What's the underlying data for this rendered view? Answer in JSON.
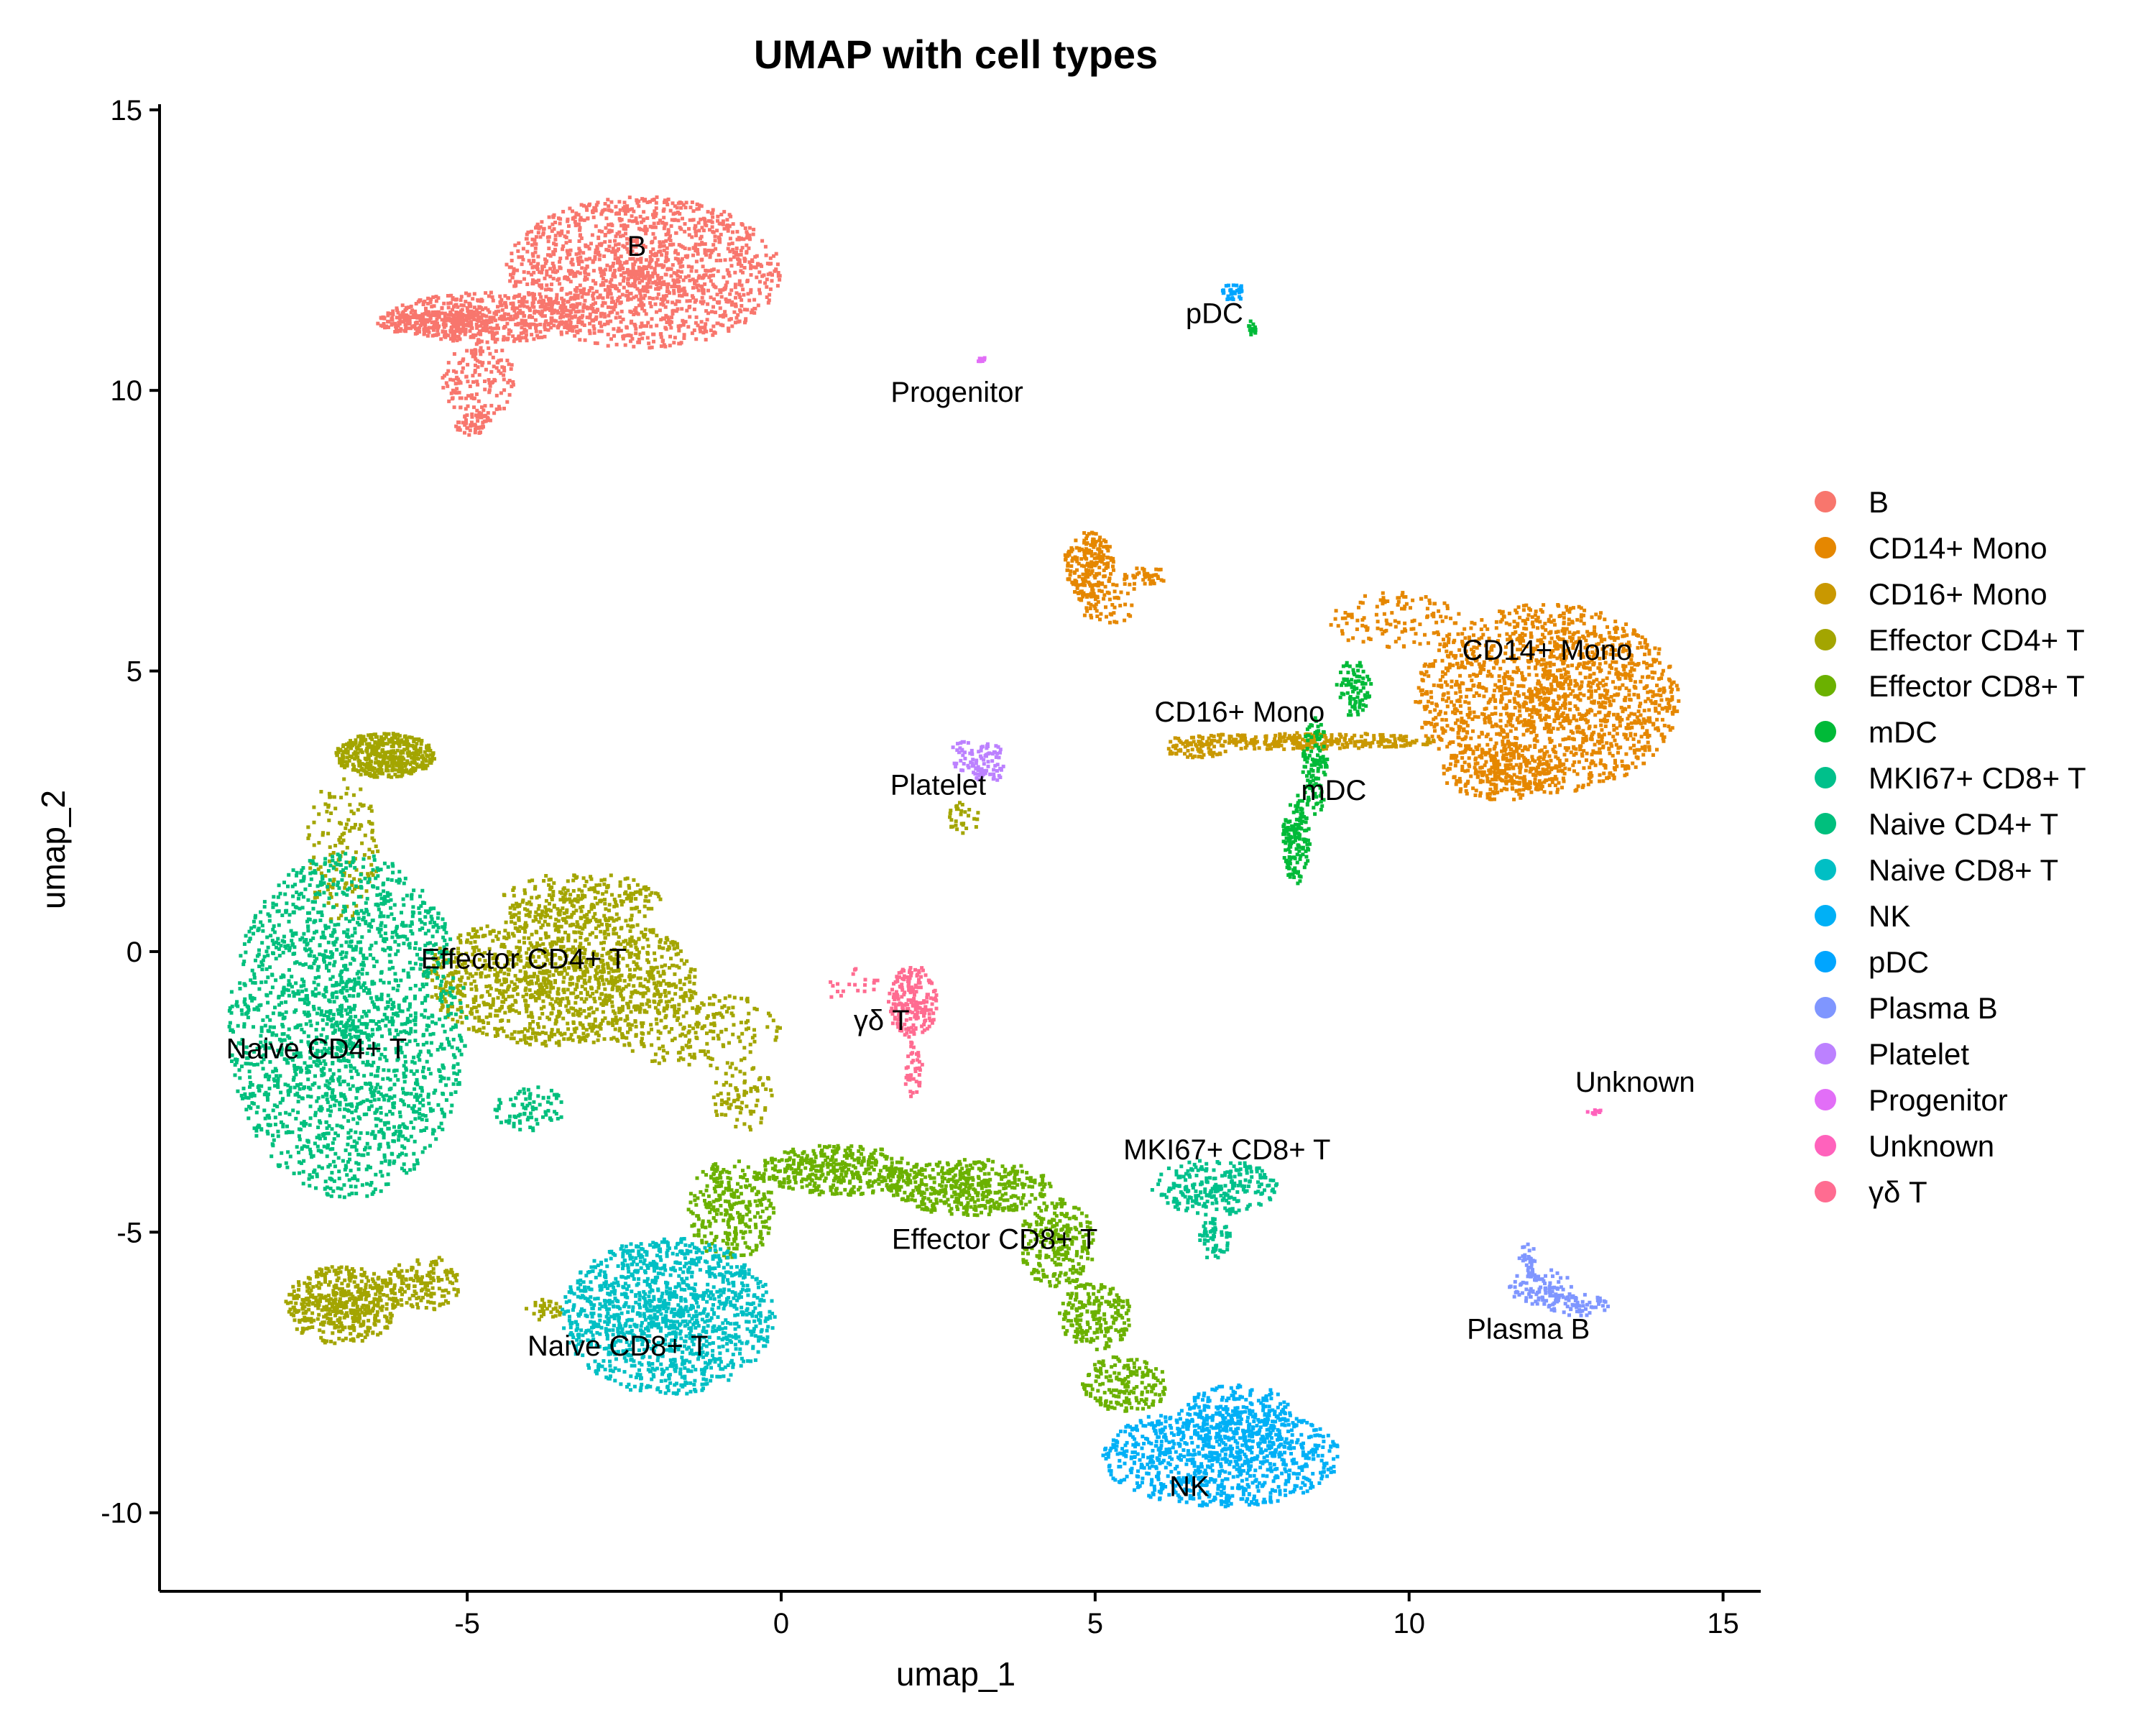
{
  "chart_data": {
    "type": "scatter",
    "title": "UMAP with cell types",
    "xlabel": "umap_1",
    "ylabel": "umap_2",
    "xlim": [
      -9.9,
      15.6
    ],
    "ylim": [
      -11.4,
      15.1
    ],
    "xticks": [
      -5,
      0,
      5,
      10,
      15
    ],
    "yticks": [
      -10,
      -5,
      0,
      5,
      10,
      15
    ],
    "grid": false,
    "legend_position": "right",
    "series": [
      {
        "name": "B",
        "color": "#F8766D",
        "label_at": [
          -2.3,
          12.4
        ],
        "regions": [
          {
            "x": -2.2,
            "y": 12.1,
            "rx": 2.2,
            "ry": 1.35,
            "n": 1500
          },
          {
            "x": -4.6,
            "y": 11.3,
            "rx": 1.7,
            "ry": 0.45,
            "n": 500
          },
          {
            "x": -5.5,
            "y": 11.2,
            "rx": 1.0,
            "ry": 0.22,
            "n": 200
          },
          {
            "x": -4.8,
            "y": 10.2,
            "rx": 0.6,
            "ry": 0.7,
            "n": 150
          },
          {
            "x": -4.9,
            "y": 9.4,
            "rx": 0.3,
            "ry": 0.2,
            "n": 60
          }
        ]
      },
      {
        "name": "CD14+ Mono",
        "color": "#E58700",
        "label_at": [
          12.2,
          5.2
        ],
        "regions": [
          {
            "x": 12.2,
            "y": 4.5,
            "rx": 2.1,
            "ry": 1.7,
            "n": 1700
          },
          {
            "x": 11.5,
            "y": 3.2,
            "rx": 1.0,
            "ry": 0.5,
            "n": 200
          },
          {
            "x": 9.8,
            "y": 5.9,
            "rx": 1.1,
            "ry": 0.5,
            "n": 120
          },
          {
            "x": 4.9,
            "y": 6.9,
            "rx": 0.4,
            "ry": 0.6,
            "n": 200
          },
          {
            "x": 5.2,
            "y": 6.3,
            "rx": 0.5,
            "ry": 0.5,
            "n": 70
          },
          {
            "x": 5.8,
            "y": 6.7,
            "rx": 0.4,
            "ry": 0.15,
            "n": 40
          }
        ]
      },
      {
        "name": "CD16+ Mono",
        "color": "#C99800",
        "label_at": [
          7.3,
          4.1
        ],
        "regions": [
          {
            "x": 8.3,
            "y": 3.75,
            "rx": 2.2,
            "ry": 0.15,
            "n": 300
          },
          {
            "x": 6.6,
            "y": 3.6,
            "rx": 0.5,
            "ry": 0.15,
            "n": 60
          }
        ]
      },
      {
        "name": "Effector CD4+ T",
        "color": "#A3A500",
        "label_at": [
          -4.1,
          -0.3
        ],
        "regions": [
          {
            "x": -3.5,
            "y": -0.5,
            "rx": 2.2,
            "ry": 1.2,
            "n": 1300
          },
          {
            "x": -3.2,
            "y": 0.9,
            "rx": 1.3,
            "ry": 0.5,
            "n": 250
          },
          {
            "x": -6.3,
            "y": 3.5,
            "rx": 0.8,
            "ry": 0.4,
            "n": 450
          },
          {
            "x": -7.0,
            "y": 1.8,
            "rx": 0.6,
            "ry": 1.3,
            "n": 150
          },
          {
            "x": -1.3,
            "y": -1.4,
            "rx": 1.3,
            "ry": 0.7,
            "n": 200
          },
          {
            "x": -0.6,
            "y": -2.6,
            "rx": 0.5,
            "ry": 0.6,
            "n": 80
          },
          {
            "x": -7.0,
            "y": -6.3,
            "rx": 0.9,
            "ry": 0.7,
            "n": 500
          },
          {
            "x": -5.7,
            "y": -5.9,
            "rx": 0.6,
            "ry": 0.5,
            "n": 150
          },
          {
            "x": -3.8,
            "y": -6.4,
            "rx": 0.3,
            "ry": 0.2,
            "n": 30
          },
          {
            "x": 2.9,
            "y": 2.4,
            "rx": 0.3,
            "ry": 0.3,
            "n": 30
          }
        ]
      },
      {
        "name": "Effector CD8+ T",
        "color": "#6BB100",
        "label_at": [
          3.4,
          -5.3
        ],
        "regions": [
          {
            "x": -0.8,
            "y": -4.6,
            "rx": 0.7,
            "ry": 0.9,
            "n": 300
          },
          {
            "x": 0.9,
            "y": -3.9,
            "rx": 1.3,
            "ry": 0.45,
            "n": 400
          },
          {
            "x": 3.0,
            "y": -4.2,
            "rx": 1.3,
            "ry": 0.5,
            "n": 450
          },
          {
            "x": 4.4,
            "y": -5.2,
            "rx": 0.6,
            "ry": 0.8,
            "n": 250
          },
          {
            "x": 5.0,
            "y": -6.5,
            "rx": 0.6,
            "ry": 0.6,
            "n": 200
          },
          {
            "x": 5.5,
            "y": -7.7,
            "rx": 0.7,
            "ry": 0.5,
            "n": 180
          }
        ]
      },
      {
        "name": "mDC",
        "color": "#00BA38",
        "label_at": [
          8.8,
          2.7
        ],
        "regions": [
          {
            "x": 8.2,
            "y": 2.0,
            "rx": 0.22,
            "ry": 0.8,
            "n": 150
          },
          {
            "x": 8.5,
            "y": 3.3,
            "rx": 0.2,
            "ry": 0.9,
            "n": 120
          },
          {
            "x": 9.1,
            "y": 4.7,
            "rx": 0.3,
            "ry": 0.5,
            "n": 80
          },
          {
            "x": 7.5,
            "y": 11.1,
            "rx": 0.06,
            "ry": 0.15,
            "n": 15
          }
        ]
      },
      {
        "name": "MKI67+ CD8+ T",
        "color": "#00C08B",
        "label_at": [
          7.1,
          -3.7
        ],
        "regions": [
          {
            "x": 6.9,
            "y": -4.2,
            "rx": 1.0,
            "ry": 0.5,
            "n": 250
          },
          {
            "x": 6.9,
            "y": -5.1,
            "rx": 0.25,
            "ry": 0.4,
            "n": 60
          }
        ]
      },
      {
        "name": "Naive CD4+ T",
        "color": "#00BF7D",
        "label_at": [
          -7.4,
          -1.9
        ],
        "regions": [
          {
            "x": -6.9,
            "y": -1.3,
            "rx": 1.9,
            "ry": 3.1,
            "n": 2000
          },
          {
            "x": -4.0,
            "y": -2.8,
            "rx": 0.6,
            "ry": 0.4,
            "n": 80
          }
        ]
      },
      {
        "name": "Naive CD8+ T",
        "color": "#00BFC4",
        "label_at": [
          -2.6,
          -7.2
        ],
        "regions": [
          {
            "x": -1.8,
            "y": -6.5,
            "rx": 1.7,
            "ry": 1.4,
            "n": 1300
          }
        ]
      },
      {
        "name": "NK",
        "color": "#00B0F6",
        "label_at": [
          6.5,
          -9.7
        ],
        "regions": [
          {
            "x": 7.0,
            "y": -9.0,
            "rx": 1.9,
            "ry": 0.9,
            "n": 900
          },
          {
            "x": 7.3,
            "y": -8.3,
            "rx": 0.9,
            "ry": 0.6,
            "n": 250
          }
        ]
      },
      {
        "name": "pDC",
        "color": "#00A5FF",
        "label_at": [
          6.9,
          11.2
        ],
        "regions": [
          {
            "x": 7.2,
            "y": 11.75,
            "rx": 0.22,
            "ry": 0.15,
            "n": 30
          }
        ]
      },
      {
        "name": "Plasma B",
        "color": "#7F96FF",
        "label_at": [
          11.9,
          -6.9
        ],
        "regions": [
          {
            "x": 12.1,
            "y": -6.0,
            "rx": 0.5,
            "ry": 0.35,
            "n": 100
          },
          {
            "x": 12.7,
            "y": -6.3,
            "rx": 0.5,
            "ry": 0.2,
            "n": 60
          },
          {
            "x": 11.9,
            "y": -5.5,
            "rx": 0.15,
            "ry": 0.3,
            "n": 30
          }
        ]
      },
      {
        "name": "Platelet",
        "color": "#BC81FF",
        "label_at": [
          2.5,
          2.8
        ],
        "regions": [
          {
            "x": 3.3,
            "y": 3.35,
            "rx": 0.3,
            "ry": 0.35,
            "n": 70
          },
          {
            "x": 2.9,
            "y": 3.5,
            "rx": 0.2,
            "ry": 0.3,
            "n": 30
          }
        ]
      },
      {
        "name": "Progenitor",
        "color": "#E26EF7",
        "label_at": [
          2.8,
          9.8
        ],
        "regions": [
          {
            "x": 3.2,
            "y": 10.55,
            "rx": 0.07,
            "ry": 0.06,
            "n": 12
          }
        ]
      },
      {
        "name": "Unknown",
        "color": "#FF62BC",
        "label_at": [
          13.6,
          -2.5
        ],
        "regions": [
          {
            "x": 12.95,
            "y": -2.85,
            "rx": 0.12,
            "ry": 0.06,
            "n": 10
          }
        ]
      },
      {
        "name": "γδ T",
        "color": "#FF6C91",
        "label_at": [
          1.6,
          -1.4
        ],
        "regions": [
          {
            "x": 2.1,
            "y": -0.9,
            "rx": 0.4,
            "ry": 0.65,
            "n": 200
          },
          {
            "x": 2.1,
            "y": -2.1,
            "rx": 0.15,
            "ry": 0.5,
            "n": 40
          },
          {
            "x": 1.1,
            "y": -0.6,
            "rx": 0.5,
            "ry": 0.3,
            "n": 20
          }
        ]
      }
    ]
  }
}
